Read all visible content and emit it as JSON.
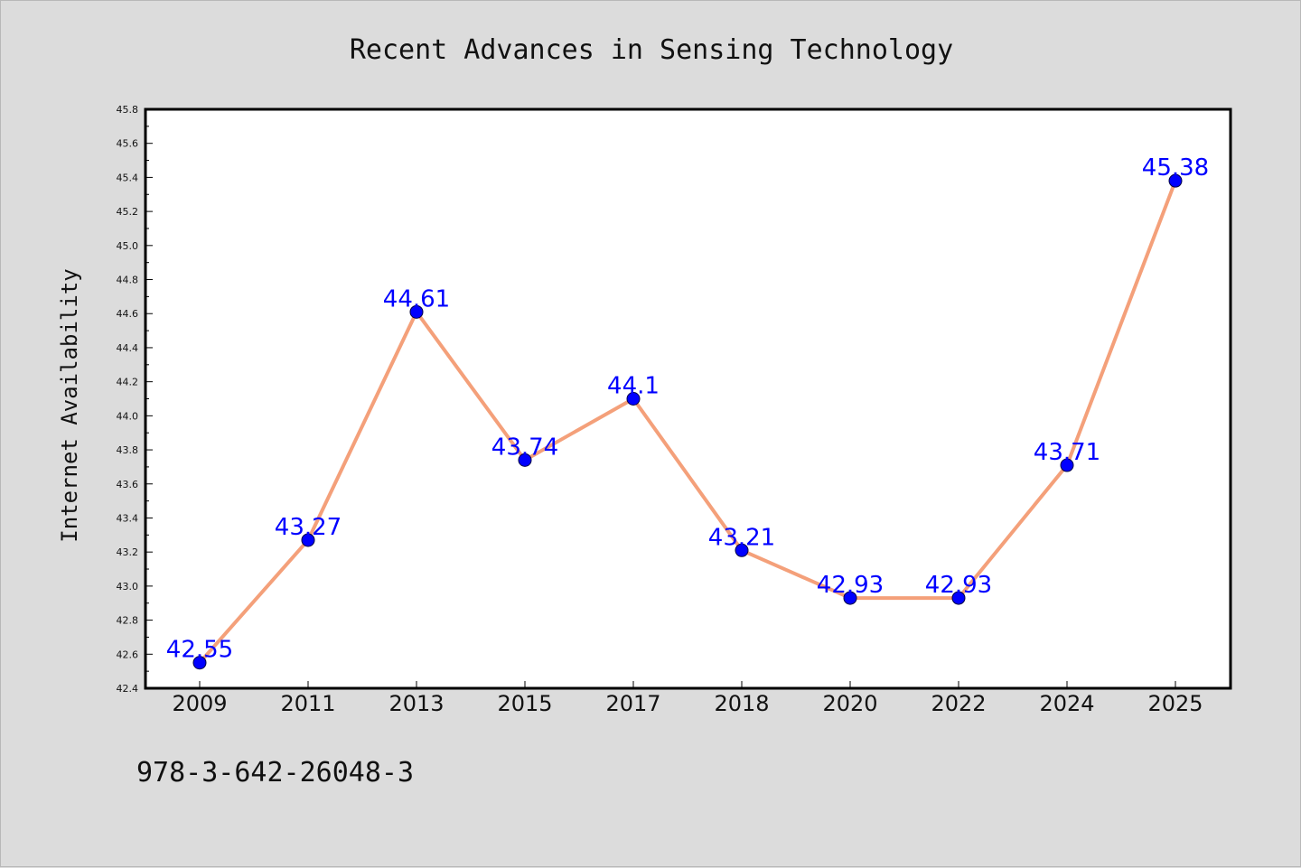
{
  "chart_data": {
    "type": "line",
    "title": "Recent Advances in Sensing Technology",
    "xlabel": "",
    "ylabel": "Internet Availability",
    "categories": [
      "2009",
      "2011",
      "2013",
      "2015",
      "2017",
      "2018",
      "2020",
      "2022",
      "2024",
      "2025"
    ],
    "series": [
      {
        "values": [
          42.55,
          43.27,
          44.61,
          43.74,
          44.1,
          43.21,
          42.93,
          42.93,
          43.71,
          45.38
        ],
        "labels": [
          "42.55",
          "43.27",
          "44.61",
          "43.74",
          "44.1",
          "43.21",
          "42.93",
          "42.93",
          "43.71",
          "45.38"
        ],
        "line_color": "#f4a07a",
        "marker_color": "#0000ff"
      }
    ],
    "ylim": [
      42.4,
      45.8
    ],
    "yticks": [
      "42.4",
      "42.6",
      "42.8",
      "43.0",
      "43.2",
      "43.4",
      "43.6",
      "43.8",
      "44.0",
      "44.2",
      "44.4",
      "44.6",
      "44.8",
      "45.0",
      "45.2",
      "45.4",
      "45.6",
      "45.8"
    ],
    "grid": false,
    "legend": "none"
  },
  "footer": {
    "isbn": "978-3-642-26048-3"
  },
  "colors": {
    "background": "#dcdcdc",
    "plot_background": "#ffffff",
    "line": "#f4a07a",
    "marker": "#0000ff",
    "data_label": "#0000ff"
  }
}
